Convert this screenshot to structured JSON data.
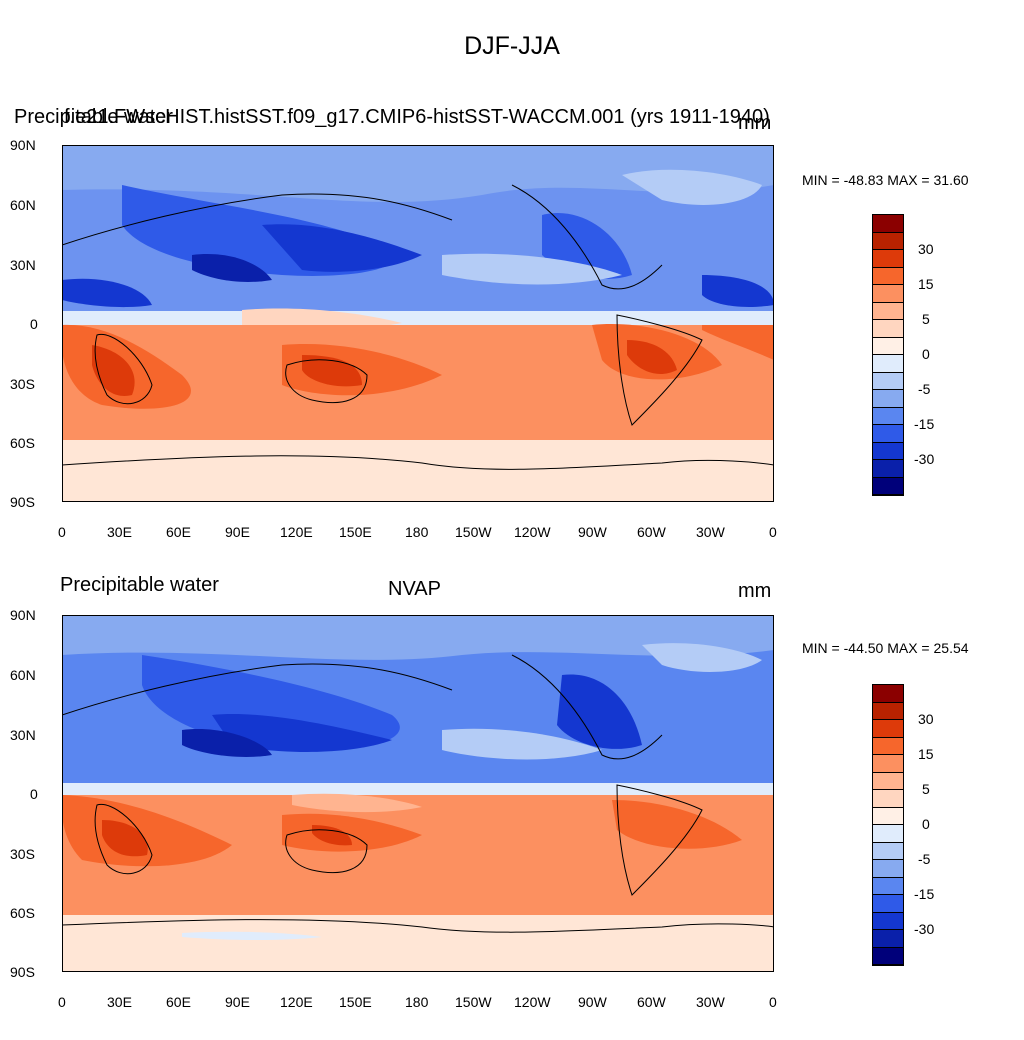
{
  "title": "DJF-JJA",
  "panels": [
    {
      "left_title": "Precipitable water",
      "center_title": "f.e21.FWscHIST.histSST.f09_g17.CMIP6-histSST-WACCM.001 (yrs 1911-1940)",
      "units": "mm",
      "stats": "MIN = -48.83 MAX =  31.60"
    },
    {
      "left_title": "Precipitable water",
      "center_title": "NVAP",
      "units": "mm",
      "stats": "MIN = -44.50 MAX =  25.54"
    }
  ],
  "lat_labels": [
    "90N",
    "60N",
    "30N",
    "0",
    "30S",
    "60S",
    "90S"
  ],
  "lon_labels": [
    "0",
    "30E",
    "60E",
    "90E",
    "120E",
    "150E",
    "180",
    "150W",
    "120W",
    "90W",
    "60W",
    "30W",
    "0"
  ],
  "colorbar": {
    "labels": [
      "30",
      "15",
      "5",
      "0",
      "-5",
      "-15",
      "-30"
    ],
    "colors": [
      "#8b0000",
      "#b82200",
      "#dd3a0a",
      "#f6662c",
      "#fc9060",
      "#ffb490",
      "#ffd6c0",
      "#fff0e6",
      "#e0ecfc",
      "#b4ccf6",
      "#87aaf0",
      "#5a86f0",
      "#2f5ae8",
      "#1437d0",
      "#0a20aa",
      "#00007a"
    ]
  },
  "chart_data": {
    "type": "heatmap",
    "title": "DJF-JJA",
    "variable": "Precipitable water",
    "units": "mm",
    "x_range": [
      "0",
      "0"
    ],
    "x_ticks": [
      "0",
      "30E",
      "60E",
      "90E",
      "120E",
      "150E",
      "180",
      "150W",
      "120W",
      "90W",
      "60W",
      "30W",
      "0"
    ],
    "y_ticks": [
      "90N",
      "60N",
      "30N",
      "0",
      "30S",
      "60S",
      "90S"
    ],
    "colorbar_ticks": [
      30,
      15,
      5,
      0,
      -5,
      -15,
      -30
    ],
    "maps": [
      {
        "name": "f.e21.FWscHIST.histSST.f09_g17.CMIP6-histSST-WACCM.001 (yrs 1911-1940)",
        "min": -48.83,
        "max": 31.6
      },
      {
        "name": "NVAP",
        "min": -44.5,
        "max": 25.54
      }
    ]
  }
}
